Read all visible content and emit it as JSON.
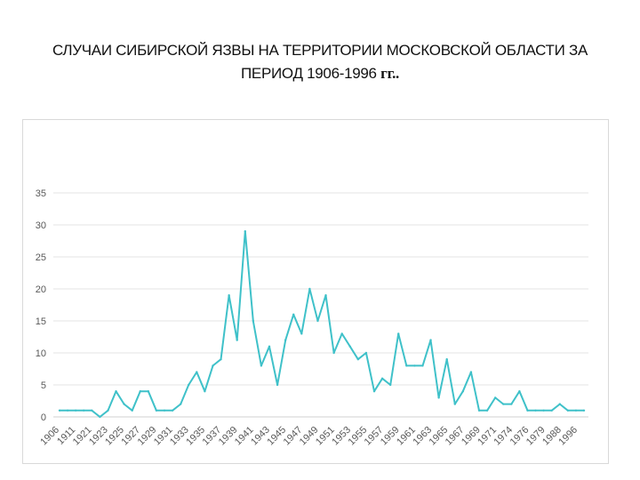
{
  "title": {
    "line1": "СЛУЧАИ СИБИРСКОЙ ЯЗВЫ НА ТЕРРИТОРИИ МОСКОВСКОЙ ОБЛАСТИ ЗА",
    "line2": "ПЕРИОД 1906-1996",
    "suffix": "гг.."
  },
  "colors": {
    "line": "#3fc1c9",
    "grid": "#e6e6e6",
    "axis": "#d0d0d0"
  },
  "chart_data": {
    "type": "line",
    "title": "СЛУЧАИ СИБИРСКОЙ ЯЗВЫ НА ТЕРРИТОРИИ МОСКОВСКОЙ ОБЛАСТИ ЗА ПЕРИОД 1906-1996 гг..",
    "ylim": [
      0,
      35
    ],
    "yticks": [
      0,
      5,
      10,
      15,
      20,
      25,
      30,
      35
    ],
    "grid": true,
    "legend": "none",
    "x_tick_labels": [
      "1906",
      "1911",
      "1921",
      "1923",
      "1925",
      "1927",
      "1929",
      "1931",
      "1933",
      "1935",
      "1937",
      "1939",
      "1941",
      "1943",
      "1945",
      "1947",
      "1949",
      "1951",
      "1953",
      "1955",
      "1957",
      "1959",
      "1961",
      "1963",
      "1965",
      "1967",
      "1969",
      "1971",
      "1974",
      "1976",
      "1979",
      "1988",
      "1996"
    ],
    "series": [
      {
        "values": [
          1,
          1,
          1,
          1,
          1,
          0,
          1,
          4,
          2,
          1,
          4,
          4,
          1,
          1,
          1,
          2,
          5,
          7,
          4,
          8,
          9,
          19,
          12,
          29,
          15,
          8,
          11,
          5,
          12,
          16,
          13,
          20,
          15,
          19,
          10,
          13,
          11,
          9,
          10,
          4,
          6,
          5,
          13,
          8,
          8,
          8,
          12,
          3,
          9,
          2,
          4,
          7,
          1,
          1,
          3,
          2,
          2,
          4,
          1,
          1,
          1,
          1,
          2,
          1,
          1,
          1
        ]
      }
    ]
  }
}
